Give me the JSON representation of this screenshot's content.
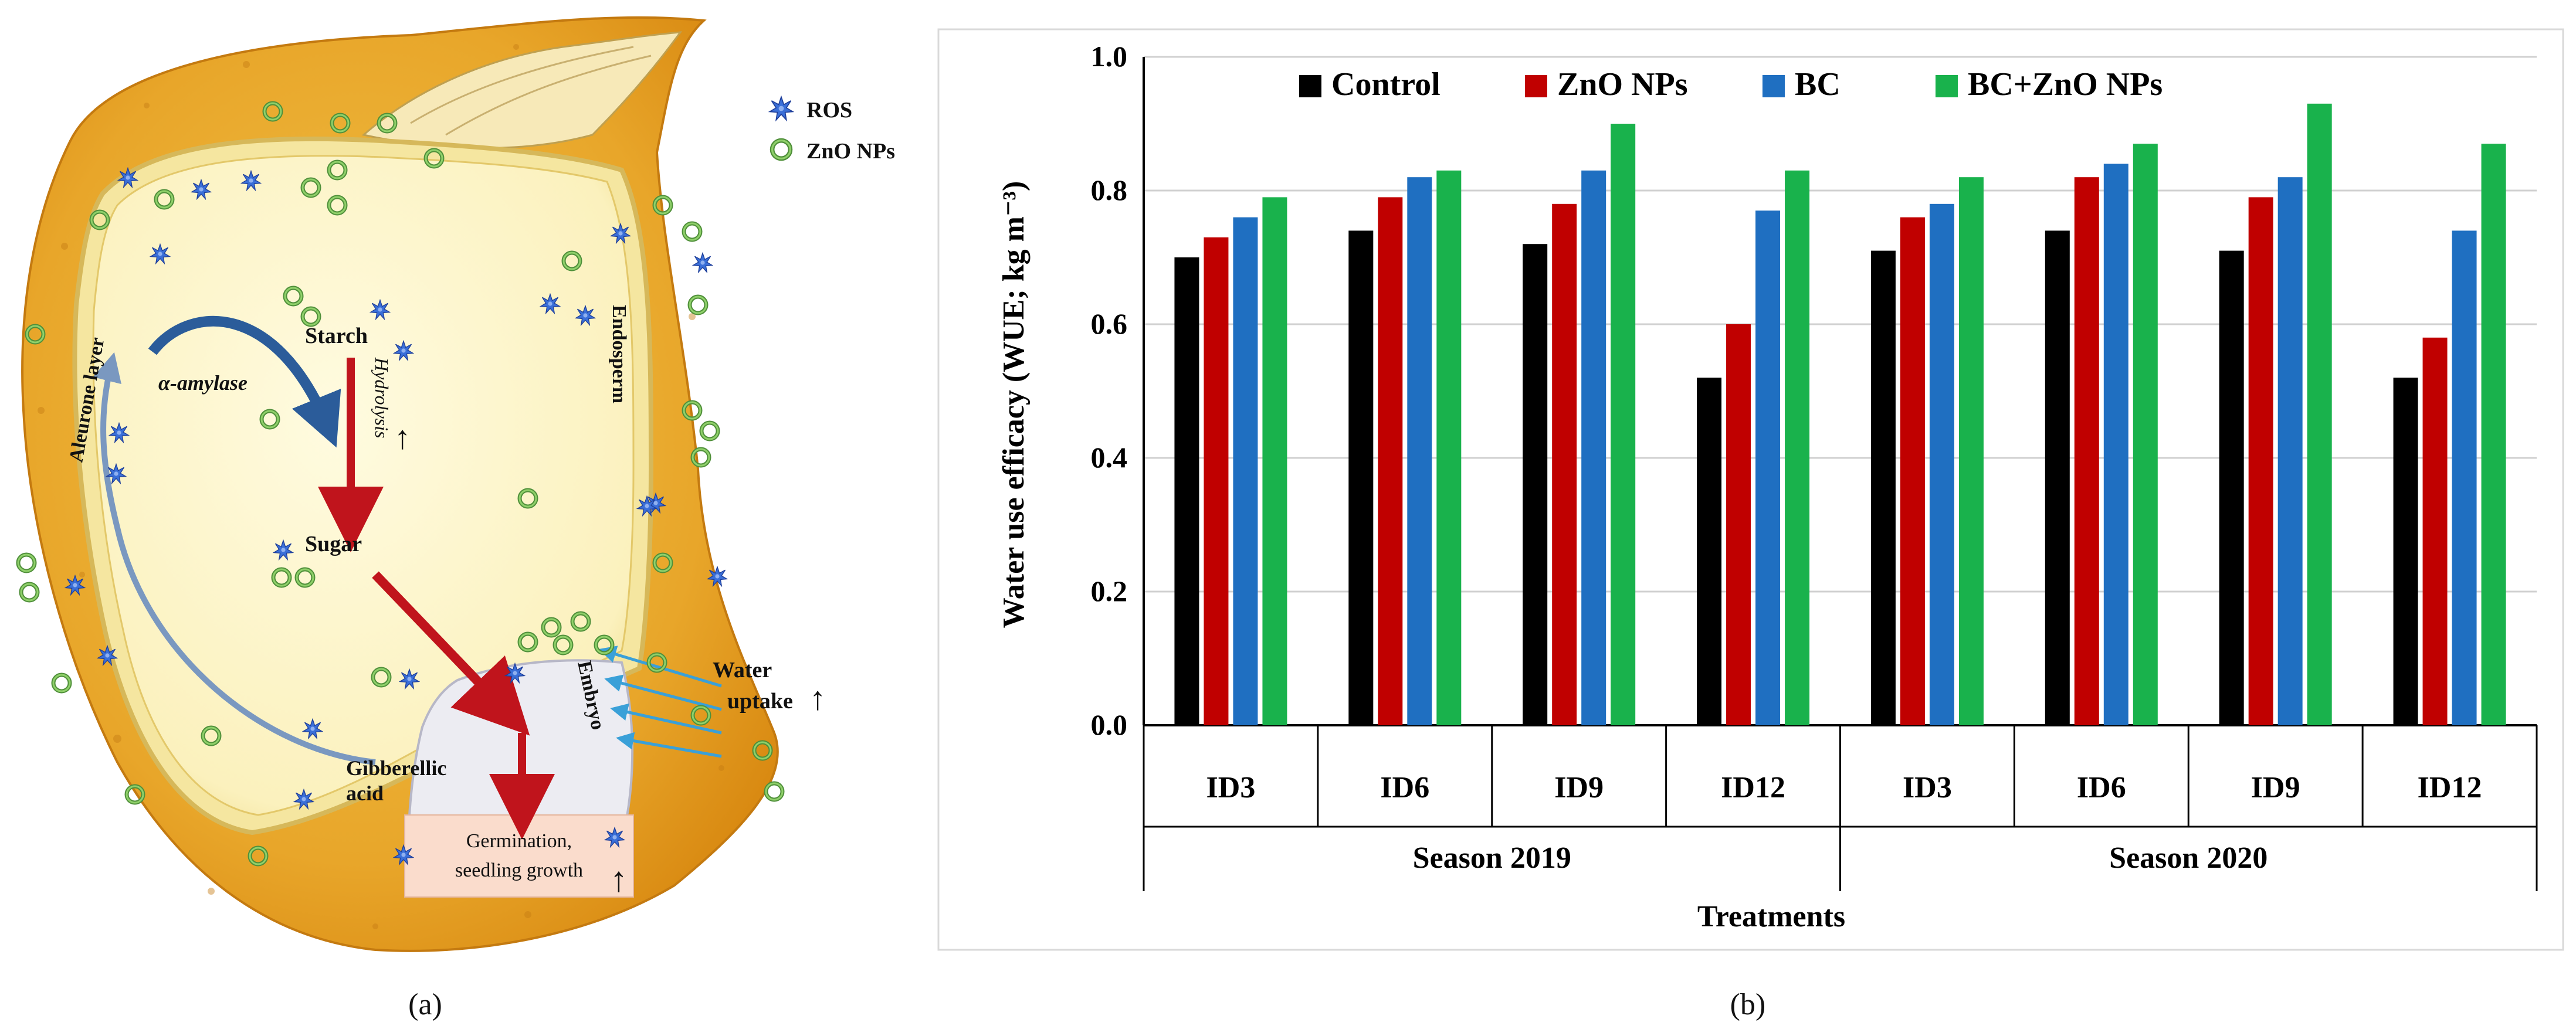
{
  "figure": {
    "panel_a_label": "(a)",
    "panel_b_label": "(b)"
  },
  "diagram": {
    "legend": [
      {
        "label": "ROS",
        "icon": "star-icon",
        "color": "#3a6fd8"
      },
      {
        "label": "ZnO NPs",
        "icon": "ring-icon",
        "color": "#5aa04a"
      }
    ],
    "labels": {
      "starch": "Starch",
      "alpha_amylase": "α-amylase",
      "hydrolysis": "Hydrolysis",
      "sugar": "Sugar",
      "aleurone_layer": "Aleurone layer",
      "endosperm": "Endosperm",
      "embryo": "Embryo",
      "gibberellic_line1": "Gibberellic",
      "gibberellic_line2": "acid",
      "water_line1": "Water",
      "water_line2": "uptake",
      "germination_line1": "Germination,",
      "germination_line2": "seedling growth"
    },
    "colors": {
      "seed_coat": "#e39a1c",
      "endosperm": "#fdf6c8",
      "embryo": "#ececf0",
      "arrow_red": "#c0141c",
      "arrow_blue": "#2b5c9a",
      "water_arrow": "#3aa0d8",
      "box_fill": "#fadccc"
    }
  },
  "chart_data": {
    "type": "bar",
    "ylabel": "Water use efficacy (WUE; kg m⁻³)",
    "xlabel": "Treatments",
    "ylim": [
      0,
      1.0
    ],
    "yticks": [
      "0.0",
      "0.2",
      "0.4",
      "0.6",
      "0.8",
      "1.0"
    ],
    "ytick_values": [
      0,
      0.2,
      0.4,
      0.6,
      0.8,
      1.0
    ],
    "grid": true,
    "legend_position": "top",
    "categories": [
      "ID3",
      "ID6",
      "ID9",
      "ID12",
      "ID3",
      "ID6",
      "ID9",
      "ID12"
    ],
    "groups": [
      {
        "label": "Season 2019",
        "categories": 4
      },
      {
        "label": "Season 2020",
        "categories": 4
      }
    ],
    "series": [
      {
        "name": "Control",
        "color": "#000000",
        "values": [
          0.7,
          0.74,
          0.72,
          0.52,
          0.71,
          0.74,
          0.71,
          0.52
        ]
      },
      {
        "name": "ZnO NPs",
        "color": "#c00000",
        "values": [
          0.73,
          0.79,
          0.78,
          0.6,
          0.76,
          0.82,
          0.79,
          0.58
        ]
      },
      {
        "name": "BC",
        "color": "#1f6fc1",
        "values": [
          0.76,
          0.82,
          0.83,
          0.77,
          0.78,
          0.84,
          0.82,
          0.74
        ]
      },
      {
        "name": "BC+ZnO NPs",
        "color": "#19b24c",
        "values": [
          0.79,
          0.83,
          0.9,
          0.83,
          0.82,
          0.87,
          0.93,
          0.87
        ]
      }
    ]
  }
}
